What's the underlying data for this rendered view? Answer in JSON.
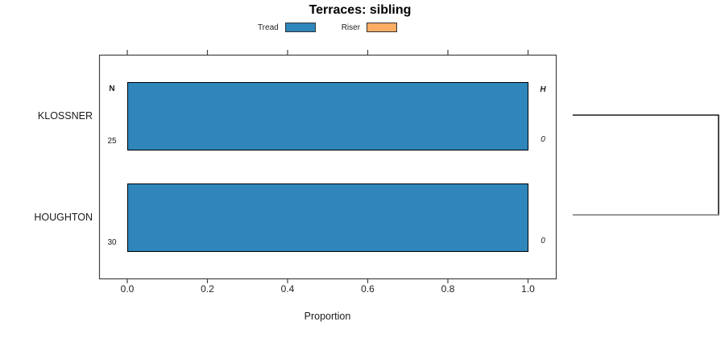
{
  "chart_data": {
    "type": "bar",
    "orientation": "horizontal",
    "title": "Terraces: sibling",
    "categories": [
      "KLOSSNER",
      "HOUGHTON"
    ],
    "series": [
      {
        "name": "Tread",
        "color": "#2E86BA",
        "values": [
          1.0,
          1.0
        ]
      },
      {
        "name": "Riser",
        "color": "#FBAD63",
        "values": [
          0.0,
          0.0
        ]
      }
    ],
    "xlabel": "Proportion",
    "xlim": [
      -0.07,
      1.07
    ],
    "xticks": [
      0.0,
      0.2,
      0.4,
      0.6,
      0.8,
      1.0
    ],
    "xtick_labels": [
      "0.0",
      "0.2",
      "0.4",
      "0.6",
      "0.8",
      "1.0"
    ],
    "grid": false,
    "legend_position": "top",
    "annotations": {
      "left_header": "N",
      "right_header": "H",
      "left_values": [
        "25",
        "30"
      ],
      "right_values": [
        "0",
        "0"
      ]
    },
    "dendrogram": {
      "connects": [
        "KLOSSNER",
        "HOUGHTON"
      ],
      "branch_colors": [
        "#1a1a1a",
        "#8a8a8a"
      ]
    },
    "colors": {
      "axis": "#404040",
      "bar_border": "#000000"
    }
  }
}
